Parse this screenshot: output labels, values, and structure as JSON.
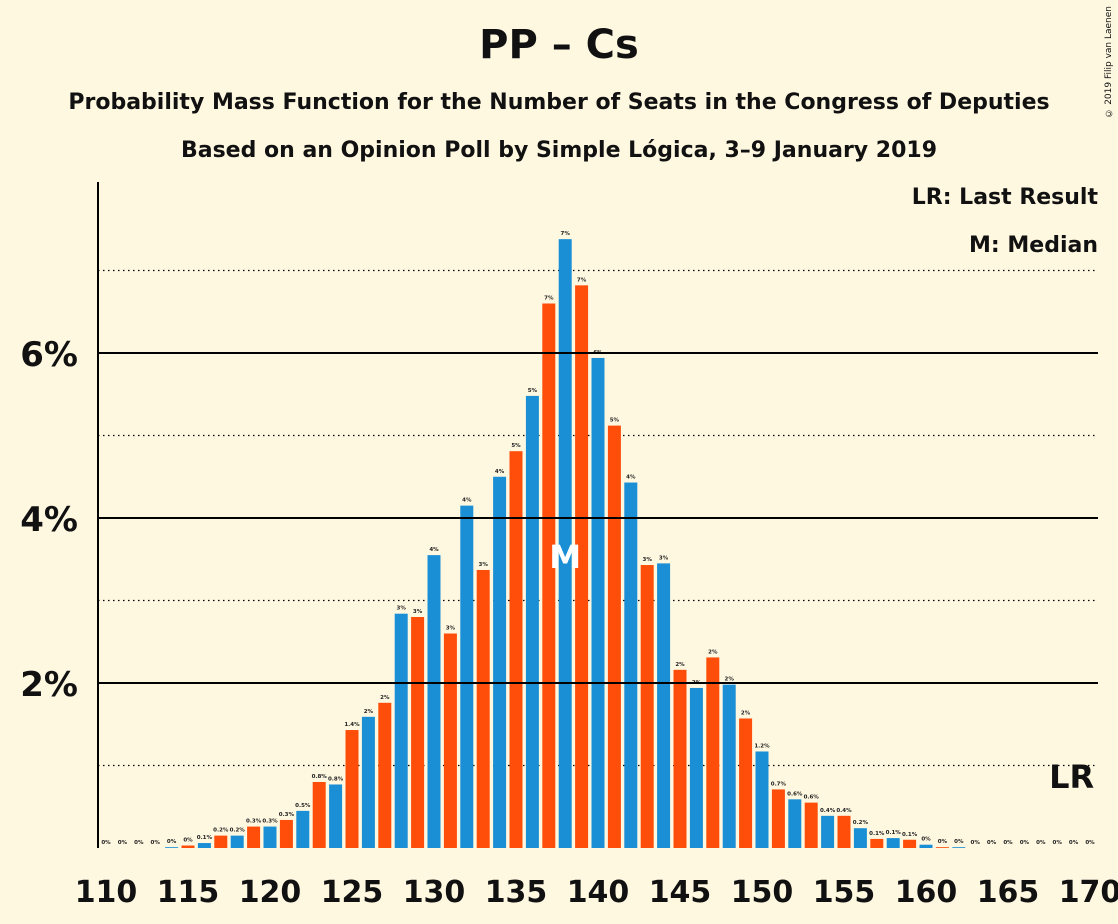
{
  "title": "PP – Cs",
  "subtitle": "Probability Mass Function for the Number of Seats in the Congress of Deputies",
  "subtitle2": "Based on an Opinion Poll by Simple Lógica, 3–9 January 2019",
  "copyright": "© 2019 Filip van Laenen",
  "legend": {
    "last_result": "LR: Last Result",
    "median": "M: Median"
  },
  "markers": {
    "median_label": "M",
    "last_result_label": "LR",
    "median_seat": 138,
    "last_result_seat": 169
  },
  "colors": {
    "blue": "#1a8fd6",
    "orange": "#ff4e0a",
    "background": "#fff8e1"
  },
  "chart_data": {
    "type": "bar",
    "xlabel": "",
    "ylabel": "",
    "xlim": [
      110,
      170
    ],
    "ylim": [
      0,
      8
    ],
    "x_ticks": [
      110,
      115,
      120,
      125,
      130,
      135,
      140,
      145,
      150,
      155,
      160,
      165,
      170
    ],
    "y_ticks_labeled": [
      {
        "value": 2,
        "label": "2%"
      },
      {
        "value": 4,
        "label": "4%"
      },
      {
        "value": 6,
        "label": "6%"
      }
    ],
    "y_dotted_lines": [
      1,
      3,
      5,
      7
    ],
    "values": [
      {
        "seat": 110,
        "value": 0.0,
        "label": "0%"
      },
      {
        "seat": 111,
        "value": 0.0,
        "label": "0%"
      },
      {
        "seat": 112,
        "value": 0.0,
        "label": "0%"
      },
      {
        "seat": 113,
        "value": 0.0,
        "label": "0%"
      },
      {
        "seat": 114,
        "value": 0.01,
        "label": "0%"
      },
      {
        "seat": 115,
        "value": 0.03,
        "label": "0%"
      },
      {
        "seat": 116,
        "value": 0.06,
        "label": "0.1%"
      },
      {
        "seat": 117,
        "value": 0.15,
        "label": "0.2%"
      },
      {
        "seat": 118,
        "value": 0.15,
        "label": "0.2%"
      },
      {
        "seat": 119,
        "value": 0.26,
        "label": "0.3%"
      },
      {
        "seat": 120,
        "value": 0.26,
        "label": "0.3%"
      },
      {
        "seat": 121,
        "value": 0.34,
        "label": "0.3%"
      },
      {
        "seat": 122,
        "value": 0.45,
        "label": "0.5%"
      },
      {
        "seat": 123,
        "value": 0.8,
        "label": "0.8%"
      },
      {
        "seat": 124,
        "value": 0.77,
        "label": "0.8%"
      },
      {
        "seat": 125,
        "value": 1.43,
        "label": "1.4%"
      },
      {
        "seat": 126,
        "value": 1.59,
        "label": "2%"
      },
      {
        "seat": 127,
        "value": 1.76,
        "label": "2%"
      },
      {
        "seat": 128,
        "value": 2.84,
        "label": "3%"
      },
      {
        "seat": 129,
        "value": 2.8,
        "label": "3%"
      },
      {
        "seat": 130,
        "value": 3.55,
        "label": "4%"
      },
      {
        "seat": 131,
        "value": 2.6,
        "label": "3%"
      },
      {
        "seat": 132,
        "value": 4.15,
        "label": "4%"
      },
      {
        "seat": 133,
        "value": 3.37,
        "label": "3%"
      },
      {
        "seat": 134,
        "value": 4.5,
        "label": "4%"
      },
      {
        "seat": 135,
        "value": 4.81,
        "label": "5%"
      },
      {
        "seat": 136,
        "value": 5.48,
        "label": "5%"
      },
      {
        "seat": 137,
        "value": 6.6,
        "label": "7%"
      },
      {
        "seat": 138,
        "value": 7.38,
        "label": "7%"
      },
      {
        "seat": 139,
        "value": 6.82,
        "label": "7%"
      },
      {
        "seat": 140,
        "value": 5.94,
        "label": "6%"
      },
      {
        "seat": 141,
        "value": 5.12,
        "label": "5%"
      },
      {
        "seat": 142,
        "value": 4.43,
        "label": "4%"
      },
      {
        "seat": 143,
        "value": 3.43,
        "label": "3%"
      },
      {
        "seat": 144,
        "value": 3.45,
        "label": "3%"
      },
      {
        "seat": 145,
        "value": 2.16,
        "label": "2%"
      },
      {
        "seat": 146,
        "value": 1.94,
        "label": "2%"
      },
      {
        "seat": 147,
        "value": 2.31,
        "label": "2%"
      },
      {
        "seat": 148,
        "value": 1.98,
        "label": "2%"
      },
      {
        "seat": 149,
        "value": 1.57,
        "label": "2%"
      },
      {
        "seat": 150,
        "value": 1.17,
        "label": "1.2%"
      },
      {
        "seat": 151,
        "value": 0.71,
        "label": "0.7%"
      },
      {
        "seat": 152,
        "value": 0.59,
        "label": "0.6%"
      },
      {
        "seat": 153,
        "value": 0.55,
        "label": "0.6%"
      },
      {
        "seat": 154,
        "value": 0.39,
        "label": "0.4%"
      },
      {
        "seat": 155,
        "value": 0.39,
        "label": "0.4%"
      },
      {
        "seat": 156,
        "value": 0.24,
        "label": "0.2%"
      },
      {
        "seat": 157,
        "value": 0.11,
        "label": "0.1%"
      },
      {
        "seat": 158,
        "value": 0.12,
        "label": "0.1%"
      },
      {
        "seat": 159,
        "value": 0.1,
        "label": "0.1%"
      },
      {
        "seat": 160,
        "value": 0.04,
        "label": "0%"
      },
      {
        "seat": 161,
        "value": 0.01,
        "label": "0%"
      },
      {
        "seat": 162,
        "value": 0.01,
        "label": "0%"
      },
      {
        "seat": 163,
        "value": 0.0,
        "label": "0%"
      },
      {
        "seat": 164,
        "value": 0.0,
        "label": "0%"
      },
      {
        "seat": 165,
        "value": 0.0,
        "label": "0%"
      },
      {
        "seat": 166,
        "value": 0.0,
        "label": "0%"
      },
      {
        "seat": 167,
        "value": 0.0,
        "label": "0%"
      },
      {
        "seat": 168,
        "value": 0.0,
        "label": "0%"
      },
      {
        "seat": 169,
        "value": 0.0,
        "label": "0%"
      },
      {
        "seat": 170,
        "value": 0.0,
        "label": "0%"
      }
    ]
  }
}
